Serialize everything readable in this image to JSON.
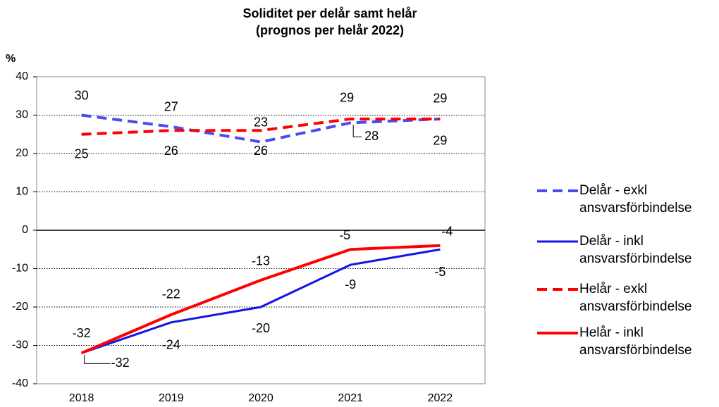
{
  "chart_data": {
    "type": "line",
    "title": "Soliditet per delår samt helår",
    "subtitle": "(prognos per helår 2022)",
    "y_label": "%",
    "categories": [
      "2018",
      "2019",
      "2020",
      "2021",
      "2022"
    ],
    "ylim": [
      -40,
      40
    ],
    "yticks": [
      -40,
      -30,
      -20,
      -10,
      0,
      10,
      20,
      30,
      40
    ],
    "grid": true,
    "legend": "right",
    "series": [
      {
        "name": "Delår - exkl ansvarsförbindelse",
        "color": "#4b4bf0",
        "dashed": true,
        "values": [
          30,
          27,
          23,
          28,
          29
        ]
      },
      {
        "name": "Delår - inkl ansvarsförbindelse",
        "color": "#1414e6",
        "dashed": false,
        "values": [
          -32,
          -24,
          -20,
          -9,
          -5
        ]
      },
      {
        "name": "Helår - exkl ansvarsförbindelse",
        "color": "#ff0000",
        "dashed": true,
        "values": [
          25,
          26,
          26,
          29,
          29
        ]
      },
      {
        "name": "Helår - inkl ansvarsförbindelse",
        "color": "#ff0000",
        "dashed": false,
        "values": [
          -32,
          -22,
          -13,
          -5,
          -4
        ]
      }
    ]
  }
}
